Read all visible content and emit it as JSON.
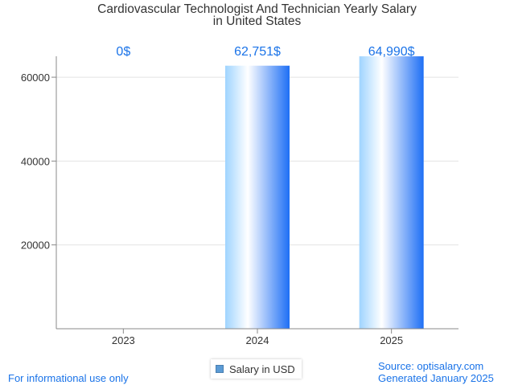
{
  "chart_data": {
    "type": "bar",
    "title_lines": [
      "Cardiovascular Technologist And Technician Yearly Salary",
      "in United States"
    ],
    "categories": [
      "2023",
      "2024",
      "2025"
    ],
    "series": [
      {
        "name": "Salary in USD",
        "values": [
          0,
          62751,
          64990
        ]
      }
    ],
    "data_labels": [
      "0$",
      "62,751$",
      "64,990$"
    ],
    "y_ticks": [
      20000,
      40000,
      60000
    ],
    "ylim": [
      0,
      65000
    ],
    "grid": true,
    "legend_position": "bottom",
    "colors": {
      "bar_light": "#bfe3ff",
      "bar_mid": "#ffffff",
      "bar_dark": "#1e6ff5",
      "label": "#1a73e8"
    }
  },
  "footer": {
    "disclaimer": "For informational use only",
    "source": "Source: optisalary.com",
    "generated": "Generated January 2025"
  }
}
